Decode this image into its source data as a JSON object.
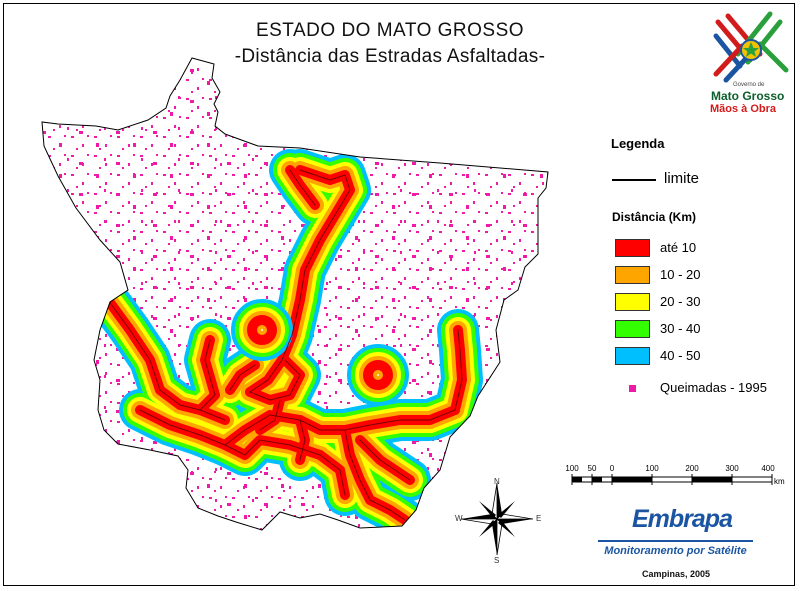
{
  "title": "ESTADO DO MATO GROSSO",
  "subtitle": "-Distância das Estradas Asfaltadas-",
  "logo": {
    "small_text": "Governo de",
    "name": "Mato Grosso",
    "slogan": "Mãos à Obra"
  },
  "legend": {
    "title": "Legenda",
    "limit_label": "limite",
    "distance_title": "Distância (Km)",
    "classes": [
      {
        "label": "até 10",
        "color": "#ff0000"
      },
      {
        "label": "10 - 20",
        "color": "#ffa500"
      },
      {
        "label": "20 - 30",
        "color": "#ffff00"
      },
      {
        "label": "30 - 40",
        "color": "#33ff00"
      },
      {
        "label": "40 - 50",
        "color": "#00bfff"
      }
    ],
    "fires_label": "Queimadas - 1995",
    "fires_color": "#ee1ba9"
  },
  "scale": {
    "ticks": [
      "100",
      "50",
      "0",
      "100",
      "200",
      "300",
      "400"
    ],
    "unit": "km"
  },
  "compass": {
    "n": "N",
    "s": "S",
    "e": "E",
    "w": "W"
  },
  "credits": {
    "org": "Embrapa",
    "program": "Monitoramento por Satélite",
    "place_date": "Campinas, 2005"
  }
}
